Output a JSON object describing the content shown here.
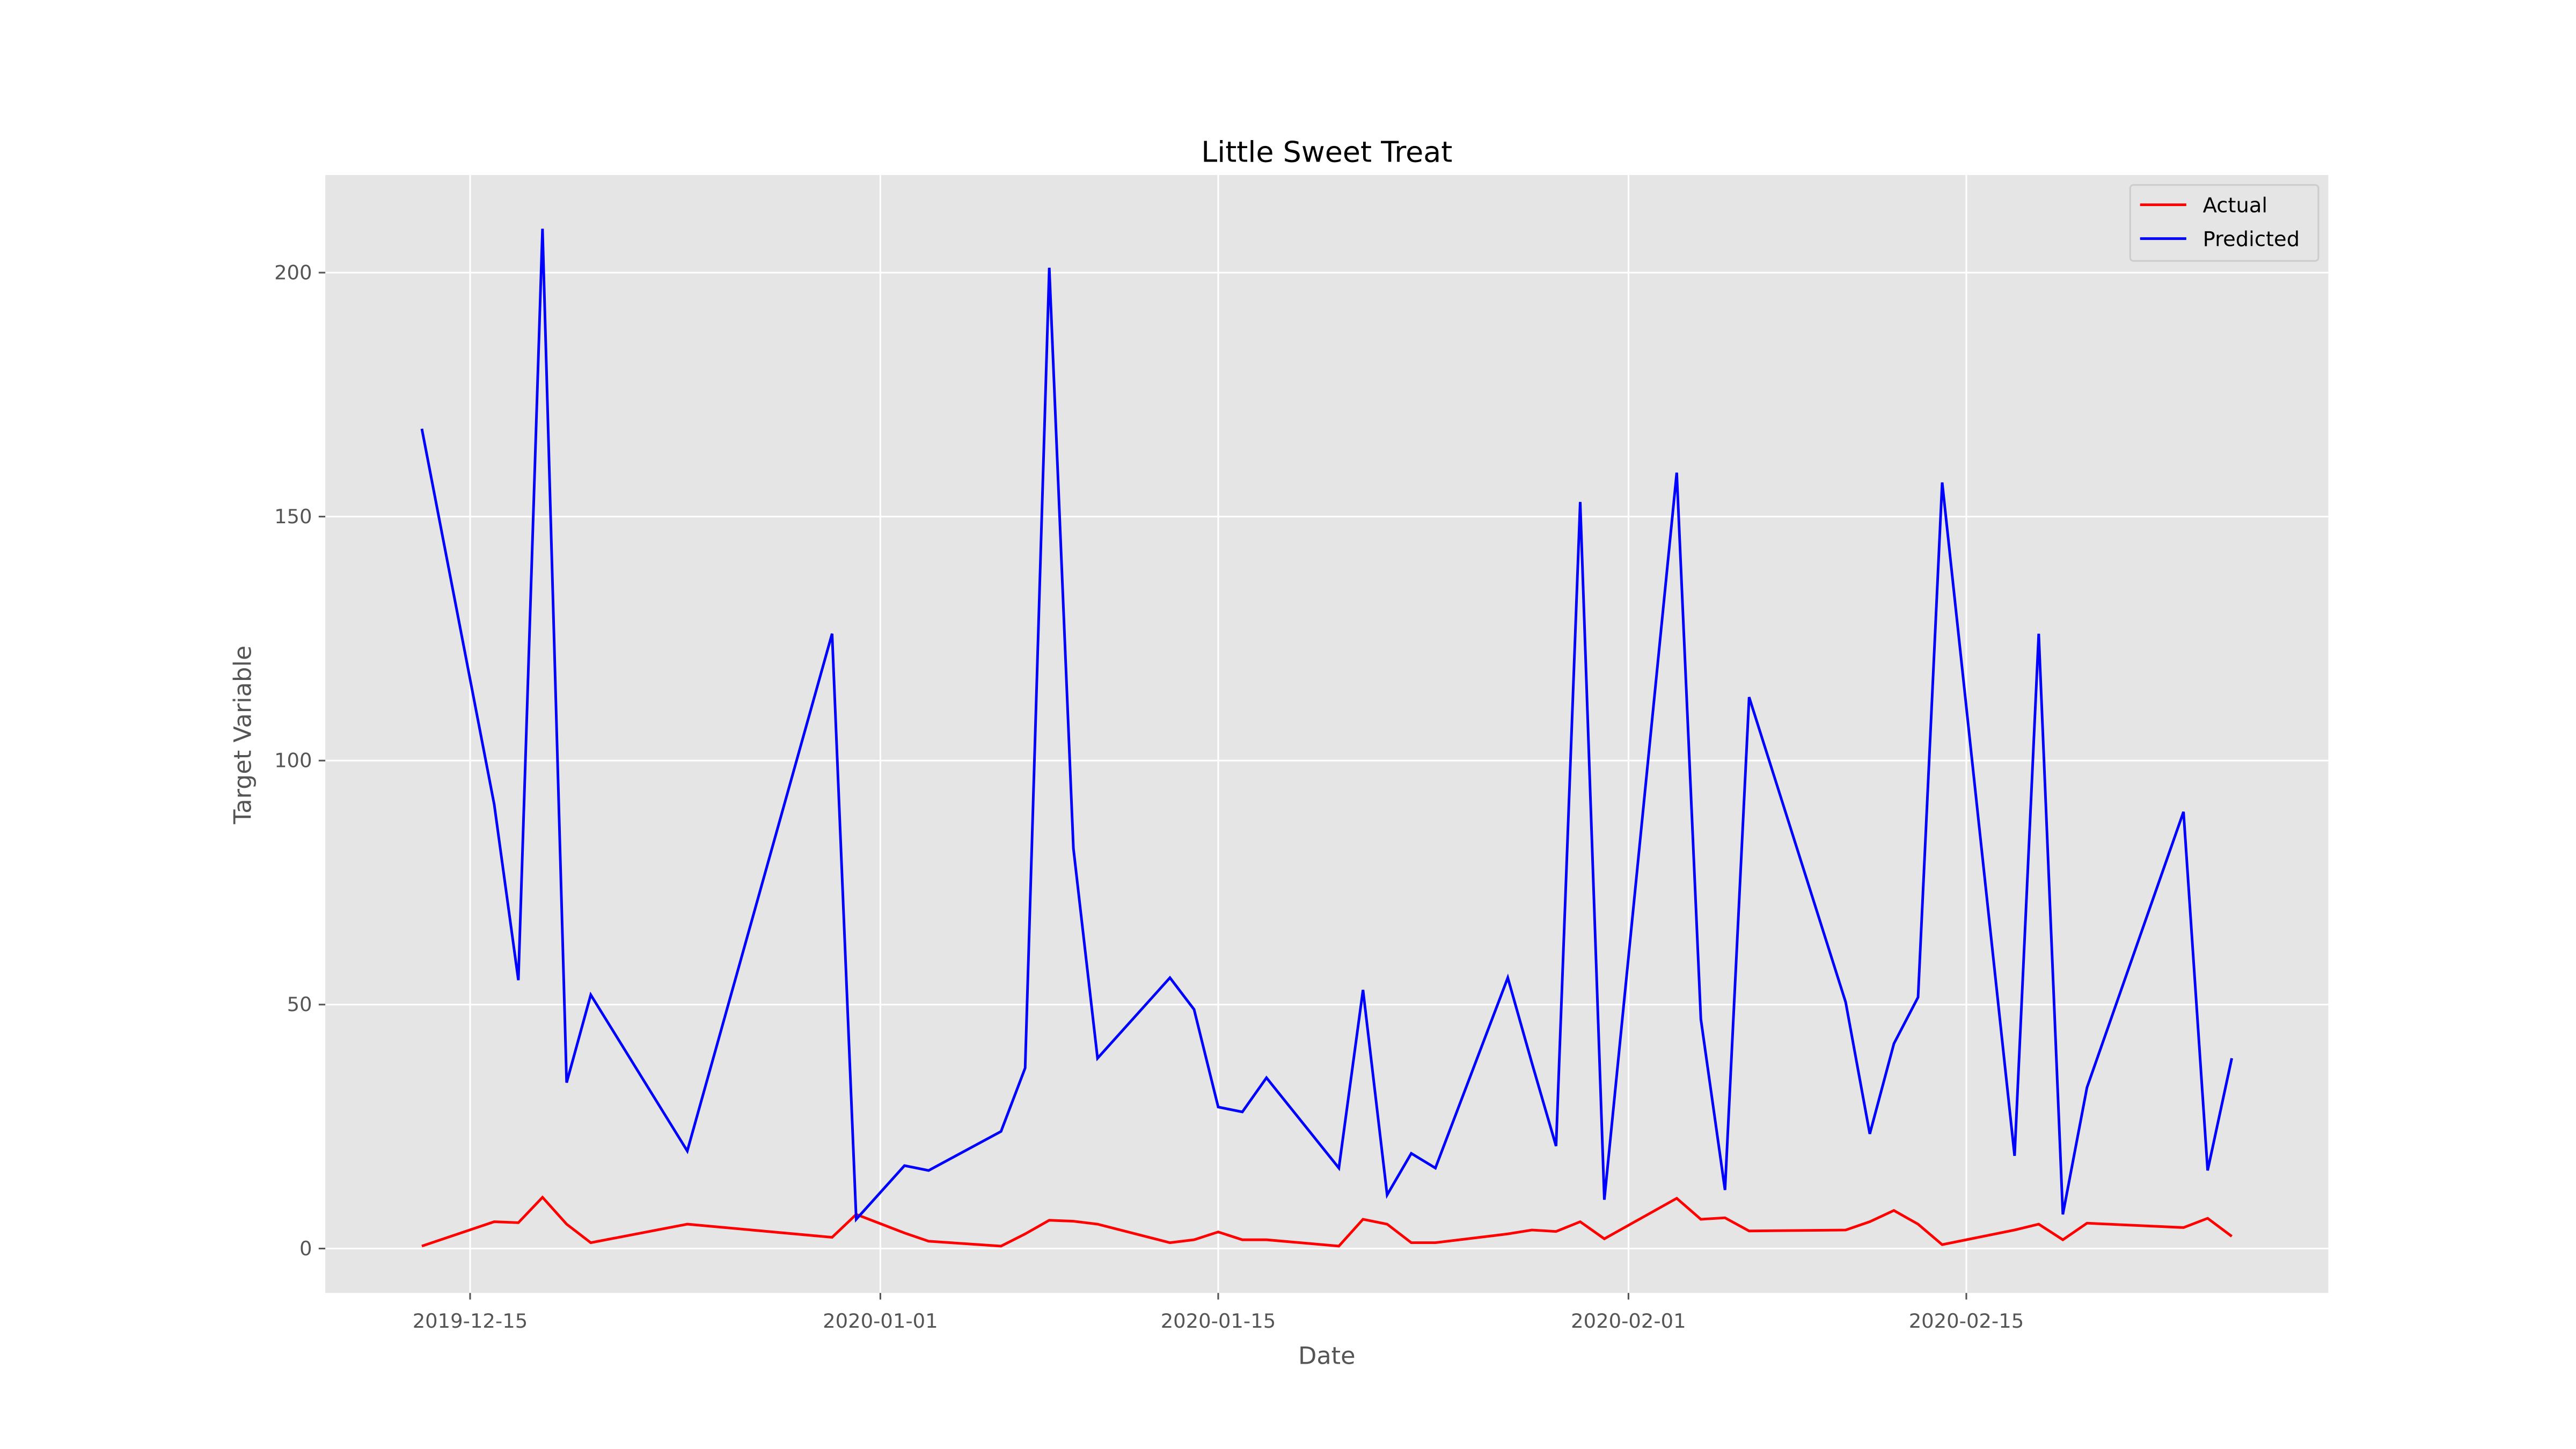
{
  "chart_data": {
    "type": "line",
    "title": "Little Sweet Treat",
    "xlabel": "Date",
    "ylabel": "Target Variable",
    "x": [
      "2019-12-13",
      "2019-12-16",
      "2019-12-17",
      "2019-12-18",
      "2019-12-19",
      "2019-12-20",
      "2019-12-24",
      "2019-12-30",
      "2019-12-31",
      "2020-01-02",
      "2020-01-03",
      "2020-01-06",
      "2020-01-07",
      "2020-01-08",
      "2020-01-09",
      "2020-01-10",
      "2020-01-13",
      "2020-01-14",
      "2020-01-15",
      "2020-01-16",
      "2020-01-17",
      "2020-01-20",
      "2020-01-21",
      "2020-01-22",
      "2020-01-23",
      "2020-01-24",
      "2020-01-27",
      "2020-01-28",
      "2020-01-29",
      "2020-01-30",
      "2020-01-31",
      "2020-02-03",
      "2020-02-04",
      "2020-02-05",
      "2020-02-06",
      "2020-02-10",
      "2020-02-11",
      "2020-02-12",
      "2020-02-13",
      "2020-02-14",
      "2020-02-17",
      "2020-02-18",
      "2020-02-19",
      "2020-02-20",
      "2020-02-24",
      "2020-02-25",
      "2020-02-26"
    ],
    "series": [
      {
        "name": "Actual",
        "color": "#ff0000",
        "values": [
          0.5,
          5.5,
          5.3,
          10.5,
          5,
          1.2,
          5,
          2.3,
          7,
          3.2,
          1.5,
          0.5,
          3,
          5.8,
          5.6,
          5,
          1.2,
          1.8,
          3.4,
          1.8,
          1.8,
          0.5,
          6,
          5,
          1.2,
          1.2,
          3,
          3.8,
          3.5,
          5.5,
          2,
          10.3,
          6,
          6.3,
          3.6,
          3.8,
          5.5,
          7.8,
          5,
          0.8,
          3.8,
          5,
          1.8,
          5.2,
          4.3,
          6.2,
          2.5
        ]
      },
      {
        "name": "Predicted",
        "color": "#0000ff",
        "values": [
          168,
          91,
          55,
          209,
          34,
          52,
          20,
          126,
          6,
          17,
          16,
          24,
          37,
          201,
          82,
          39,
          55.5,
          49,
          29,
          28,
          35,
          16.5,
          53,
          11,
          19.5,
          16.5,
          55.5,
          38,
          21,
          153,
          10,
          159,
          47,
          12,
          113,
          50.5,
          23.5,
          42,
          51.5,
          157,
          19,
          126,
          7,
          33,
          89.5,
          16,
          39
        ]
      }
    ],
    "xlim": [
      "2019-12-09",
      "2020-03-01"
    ],
    "xticks": [
      "2019-12-15",
      "2020-01-01",
      "2020-01-15",
      "2020-02-01",
      "2020-02-15"
    ],
    "ylim": [
      -9.1,
      220
    ],
    "yticks": [
      0,
      50,
      100,
      150,
      200
    ],
    "grid": true,
    "legend": "upper right"
  }
}
